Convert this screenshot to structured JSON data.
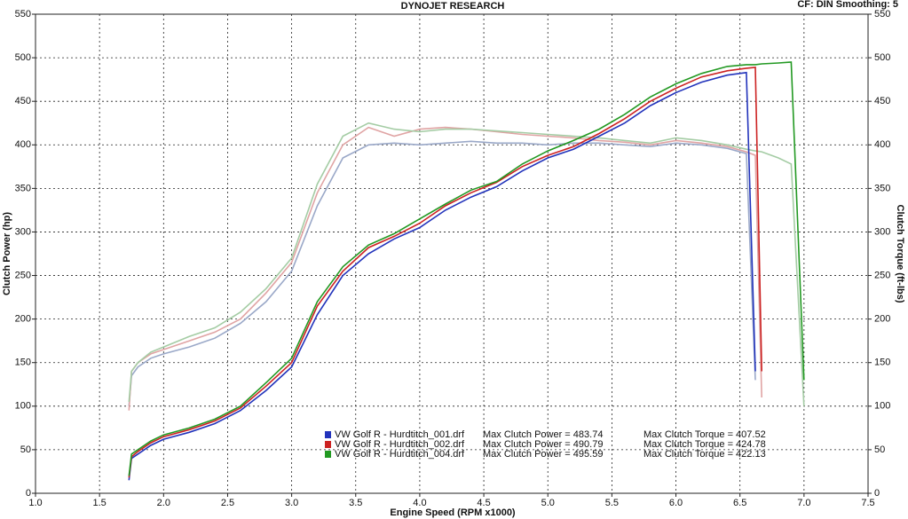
{
  "chart_data": {
    "type": "line",
    "title": "DYNOJET RESEARCH",
    "subtitle": "CF: DIN  Smoothing: 5",
    "x_label": "Engine Speed (RPM x1000)",
    "y_label": "Clutch Power (hp)",
    "y2_label": "Clutch Torque (ft-lbs)",
    "grid": true,
    "xlim": [
      1.0,
      7.5
    ],
    "xticks": [
      {
        "value": 1,
        "label": "1.0"
      },
      1.5,
      {
        "value": 2,
        "label": "2.0"
      },
      2.5,
      {
        "value": 3,
        "label": "3.0"
      },
      3.5,
      {
        "value": 4,
        "label": "4.0"
      },
      4.5,
      {
        "value": 5,
        "label": "5.0"
      },
      5.5,
      {
        "value": 6,
        "label": "6.0"
      },
      6.5,
      {
        "value": 7,
        "label": "7.0"
      },
      7.5
    ],
    "ylim": [
      0,
      550
    ],
    "yticks": [
      0,
      50,
      100,
      150,
      200,
      250,
      300,
      350,
      400,
      450,
      500,
      550
    ],
    "y2lim": [
      0,
      550
    ],
    "y2ticks": [
      0,
      50,
      100,
      150,
      200,
      250,
      300,
      350,
      400,
      450,
      500,
      550
    ],
    "x": [
      1.73,
      1.75,
      1.8,
      1.9,
      2.0,
      2.2,
      2.4,
      2.6,
      2.8,
      3.0,
      3.2,
      3.4,
      3.6,
      3.8,
      4.0,
      4.2,
      4.4,
      4.6,
      4.8,
      5.0,
      5.2,
      5.4,
      5.6,
      5.8,
      6.0,
      6.2,
      6.4,
      6.55,
      6.62,
      6.67,
      6.8,
      6.9,
      7.0
    ],
    "series": [
      {
        "name": "VW Golf R - Hurdtitch_001.drf",
        "color": "#2233bb",
        "axis": "y",
        "power_label": "Max Clutch Power = 483.74",
        "torque_label": "Max Clutch Torque = 407.52",
        "values": [
          15,
          40,
          45,
          55,
          62,
          70,
          80,
          95,
          118,
          145,
          205,
          250,
          275,
          292,
          305,
          325,
          340,
          352,
          370,
          385,
          395,
          410,
          425,
          445,
          460,
          472,
          480,
          483,
          140,
          null,
          null,
          null,
          null
        ]
      },
      {
        "name": "VW Golf R - Hurdtitch_002.drf",
        "color": "#cc2222",
        "axis": "y",
        "power_label": "Max Clutch Power = 490.79",
        "torque_label": "Max Clutch Torque = 424.78",
        "values": [
          18,
          42,
          48,
          58,
          65,
          73,
          83,
          98,
          123,
          150,
          215,
          255,
          282,
          295,
          310,
          330,
          345,
          357,
          375,
          388,
          398,
          413,
          430,
          450,
          465,
          478,
          485,
          488,
          489,
          140,
          null,
          null,
          null
        ]
      },
      {
        "name": "VW Golf R - Hurdtitch_004.drf",
        "color": "#229922",
        "axis": "y",
        "power_label": "Max Clutch Power = 495.59",
        "torque_label": "Max Clutch Torque = 422.13",
        "values": [
          20,
          45,
          50,
          60,
          67,
          75,
          85,
          100,
          127,
          155,
          220,
          260,
          285,
          298,
          315,
          332,
          348,
          358,
          378,
          393,
          405,
          418,
          435,
          455,
          470,
          482,
          490,
          492,
          492,
          493,
          494,
          495,
          130
        ]
      }
    ],
    "torque_series": [
      {
        "color": "#9aa8c8",
        "axis": "y2",
        "values": [
          100,
          135,
          145,
          155,
          160,
          168,
          178,
          195,
          220,
          255,
          330,
          385,
          400,
          402,
          400,
          402,
          404,
          402,
          402,
          400,
          402,
          402,
          400,
          398,
          402,
          400,
          396,
          390,
          130,
          null,
          null,
          null,
          null
        ]
      },
      {
        "color": "#e0a4a4",
        "axis": "y2",
        "values": [
          95,
          140,
          150,
          160,
          165,
          175,
          185,
          200,
          230,
          265,
          345,
          400,
          420,
          410,
          418,
          420,
          418,
          415,
          412,
          410,
          408,
          405,
          403,
          400,
          405,
          402,
          398,
          392,
          388,
          110,
          null,
          null,
          null
        ]
      },
      {
        "color": "#a4cca4",
        "axis": "y2",
        "values": [
          105,
          140,
          150,
          162,
          168,
          180,
          190,
          208,
          235,
          270,
          355,
          410,
          425,
          418,
          415,
          418,
          418,
          416,
          414,
          412,
          410,
          408,
          405,
          402,
          408,
          405,
          400,
          395,
          393,
          392,
          385,
          378,
          100
        ]
      }
    ]
  }
}
